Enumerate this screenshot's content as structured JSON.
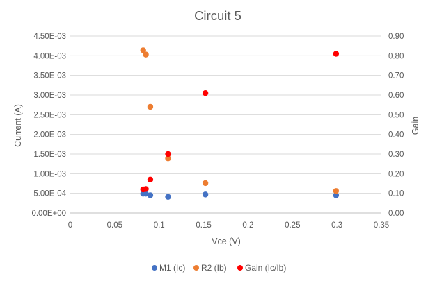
{
  "chart_data": {
    "type": "scatter",
    "title": "Circuit 5",
    "xlabel": "Vce (V)",
    "ylabel": "Current (A)",
    "y2label": "Gain",
    "xlim": [
      0,
      0.35
    ],
    "ylim": [
      0,
      0.0045
    ],
    "y2lim": [
      0,
      0.9
    ],
    "x_ticks": [
      "0",
      "0.05",
      "0.1",
      "0.15",
      "0.2",
      "0.25",
      "0.3",
      "0.35"
    ],
    "y_ticks": [
      "0.00E+00",
      "5.00E-04",
      "1.00E-03",
      "1.50E-03",
      "2.00E-03",
      "2.50E-03",
      "3.00E-03",
      "3.50E-03",
      "4.00E-03",
      "4.50E-03"
    ],
    "y2_ticks": [
      "0.00",
      "0.10",
      "0.20",
      "0.30",
      "0.40",
      "0.50",
      "0.60",
      "0.70",
      "0.80",
      "0.90"
    ],
    "grid": true,
    "legend_position": "bottom",
    "series": [
      {
        "name": "M1 (Ic)",
        "color": "#4472c4",
        "axis": "left",
        "points": [
          {
            "x": 0.082,
            "y": 0.00049
          },
          {
            "x": 0.085,
            "y": 0.00049
          },
          {
            "x": 0.09,
            "y": 0.00045
          },
          {
            "x": 0.11,
            "y": 0.00041
          },
          {
            "x": 0.152,
            "y": 0.00047
          },
          {
            "x": 0.299,
            "y": 0.00045
          }
        ]
      },
      {
        "name": "R2 (Ib)",
        "color": "#ed7d31",
        "axis": "left",
        "points": [
          {
            "x": 0.082,
            "y": 0.00414
          },
          {
            "x": 0.085,
            "y": 0.00403
          },
          {
            "x": 0.09,
            "y": 0.0027
          },
          {
            "x": 0.11,
            "y": 0.00139
          },
          {
            "x": 0.152,
            "y": 0.00076
          },
          {
            "x": 0.299,
            "y": 0.00056
          }
        ]
      },
      {
        "name": "Gain (Ic/Ib)",
        "color": "#ff0000",
        "axis": "right",
        "points": [
          {
            "x": 0.082,
            "y": 0.12
          },
          {
            "x": 0.085,
            "y": 0.122
          },
          {
            "x": 0.09,
            "y": 0.17
          },
          {
            "x": 0.11,
            "y": 0.3
          },
          {
            "x": 0.152,
            "y": 0.61
          },
          {
            "x": 0.299,
            "y": 0.81
          }
        ]
      }
    ]
  }
}
